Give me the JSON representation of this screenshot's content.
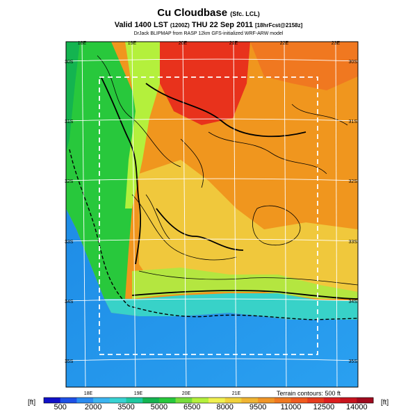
{
  "header": {
    "title": "Cu Cloudbase",
    "title_suffix": "(Sfc. LCL)",
    "subtitle": "Valid 1400 LST",
    "subtitle_utc": "(1200Z)",
    "subtitle_date": "THU 22 Sep 2011",
    "subtitle_fcst": "[18hrFcst@2158z]",
    "credit": "DrJack BLIPMAP from RASP 12km GFS-initialized WRF-ARW model"
  },
  "map": {
    "lon_labels_top": [
      "18E",
      "19E",
      "20E",
      "21E",
      "22E",
      "23E"
    ],
    "lon_labels_bottom": [
      "18E",
      "19E",
      "20E",
      "21E"
    ],
    "lat_labels_left": [
      "30S",
      "31S",
      "32S",
      "33S",
      "34S",
      "35S"
    ],
    "lat_labels_right": [
      "30S",
      "31S",
      "32S",
      "33S",
      "34S",
      "35S"
    ],
    "terrain_note": "Terrain contours: 500 ft"
  },
  "colorbar": {
    "unit_left": "[ft]",
    "unit_right": "[ft]",
    "tick_labels": [
      "500",
      "2000",
      "3500",
      "5000",
      "6500",
      "8000",
      "9500",
      "11000",
      "12500",
      "14000"
    ],
    "colors": [
      "#1010c8",
      "#1e50e6",
      "#2a8cf0",
      "#3cb4f0",
      "#38d2d2",
      "#20c8a0",
      "#14b450",
      "#28c83c",
      "#78dc3c",
      "#b4f03c",
      "#f0f050",
      "#f0d23c",
      "#f0b432",
      "#f09628",
      "#f07820",
      "#f05a1e",
      "#e63c1e",
      "#dc1e1e",
      "#c8141e",
      "#a00a1e"
    ]
  }
}
